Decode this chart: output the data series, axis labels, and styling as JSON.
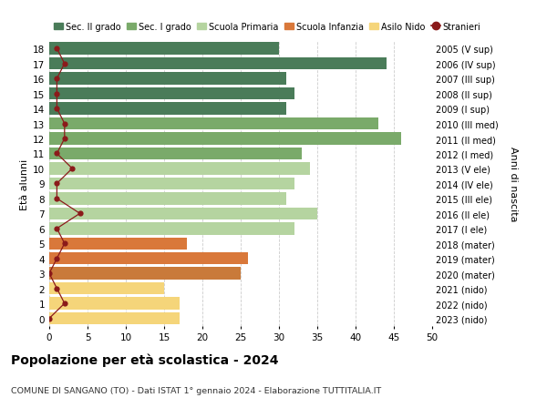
{
  "ages": [
    18,
    17,
    16,
    15,
    14,
    13,
    12,
    11,
    10,
    9,
    8,
    7,
    6,
    5,
    4,
    3,
    2,
    1,
    0
  ],
  "years": [
    "2005 (V sup)",
    "2006 (IV sup)",
    "2007 (III sup)",
    "2008 (II sup)",
    "2009 (I sup)",
    "2010 (III med)",
    "2011 (II med)",
    "2012 (I med)",
    "2013 (V ele)",
    "2014 (IV ele)",
    "2015 (III ele)",
    "2016 (II ele)",
    "2017 (I ele)",
    "2018 (mater)",
    "2019 (mater)",
    "2020 (mater)",
    "2021 (nido)",
    "2022 (nido)",
    "2023 (nido)"
  ],
  "values": [
    30,
    44,
    31,
    32,
    31,
    43,
    46,
    33,
    34,
    32,
    31,
    35,
    32,
    18,
    26,
    25,
    15,
    17,
    17
  ],
  "stranieri": [
    1,
    2,
    1,
    1,
    1,
    2,
    2,
    1,
    3,
    1,
    1,
    4,
    1,
    2,
    1,
    0,
    1,
    2,
    0
  ],
  "bar_colors": [
    "#4a7c59",
    "#4a7c59",
    "#4a7c59",
    "#4a7c59",
    "#4a7c59",
    "#7aaa6a",
    "#7aaa6a",
    "#7aaa6a",
    "#b5d4a0",
    "#b5d4a0",
    "#b5d4a0",
    "#b5d4a0",
    "#b5d4a0",
    "#d9783a",
    "#d9783a",
    "#c97a3a",
    "#f5d57a",
    "#f5d57a",
    "#f5d57a"
  ],
  "legend_labels": [
    "Sec. II grado",
    "Sec. I grado",
    "Scuola Primaria",
    "Scuola Infanzia",
    "Asilo Nido",
    "Stranieri"
  ],
  "legend_colors": [
    "#4a7c59",
    "#7aaa6a",
    "#b5d4a0",
    "#d9783a",
    "#f5d57a",
    "#8b1a1a"
  ],
  "title": "Popolazione per età scolastica - 2024",
  "subtitle": "COMUNE DI SANGANO (TO) - Dati ISTAT 1° gennaio 2024 - Elaborazione TUTTITALIA.IT",
  "ylabel_left": "Età alunni",
  "ylabel_right": "Anni di nascita",
  "xlim": [
    0,
    50
  ],
  "xticks": [
    0,
    5,
    10,
    15,
    20,
    25,
    30,
    35,
    40,
    45,
    50
  ],
  "background_color": "#ffffff",
  "grid_color": "#cccccc",
  "bar_height": 0.82
}
